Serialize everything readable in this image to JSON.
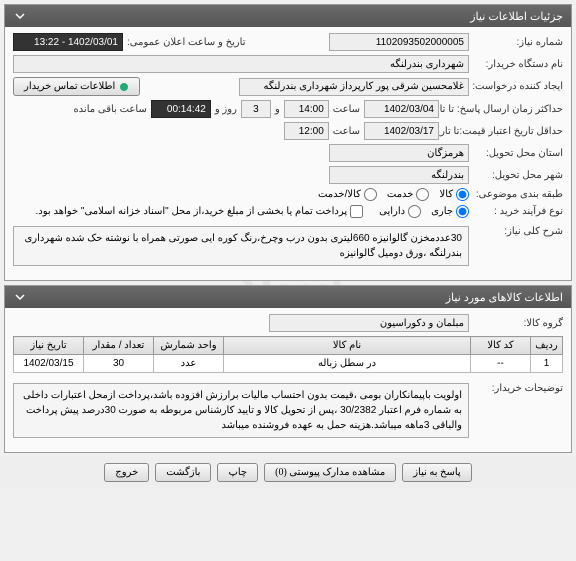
{
  "panels": {
    "info": {
      "title": "جزئیات اطلاعات نیاز",
      "need_number_label": "شماره نیاز:",
      "need_number": "1102093502000005",
      "announce_label": "تاریخ و ساعت اعلان عمومی:",
      "announce_date": "1402/03/01 - 13:22",
      "buyer_label": "نام دستگاه خریدار:",
      "buyer": "شهرداری بندرلنگه",
      "requester_label": "ایجاد کننده درخواست:",
      "requester": "غلامحسین شرقی پور کارپرداز شهرداری بندرلنگه",
      "contact_btn": "اطلاعات تماس خریدار",
      "deadline_send_label": "حداکثر زمان ارسال پاسخ: تا تاریخ:",
      "deadline_send_date": "1402/03/04",
      "time_label": "ساعت",
      "deadline_send_time": "14:00",
      "and_label": "و",
      "days": "3",
      "days_label": "روز و",
      "countdown": "00:14:42",
      "remain_label": "ساعت باقی مانده",
      "deadline_valid_label": "حداقل تاریخ اعتبار قیمت:تا تاریخ:",
      "deadline_valid_date": "1402/03/17",
      "deadline_valid_time": "12:00",
      "province_label": "استان محل تحویل:",
      "province": "هرمزگان",
      "city_label": "شهر محل تحویل:",
      "city": "بندرلنگه",
      "category_label": "طبقه بندی موضوعی:",
      "categories": {
        "goods": "کالا",
        "service": "خدمت",
        "goods_service": "کالا/خدمت"
      },
      "category_selected": "goods",
      "purchase_type_label": "نوع فرآیند خرید :",
      "purchase_types": {
        "current": "جاری",
        "asset": "دارایی"
      },
      "purchase_note": "پرداخت تمام یا بخشی از مبلغ خرید،از محل \"اسناد خزانه اسلامی\" خواهد بود.",
      "purchase_checked": false,
      "desc_label": "شرح کلی نیاز:",
      "desc": "30عددمخزن گالوانیزه 660لیتری بدون درب وچرخ،رنگ کوره ایی صورتی همراه با نوشته حک شده شهرداری بندرلنگه ،ورق دومیل گالوانیزه"
    },
    "goods": {
      "title": "اطلاعات کالاهای مورد نیاز",
      "group_label": "گروه کالا:",
      "group": "مبلمان و دکوراسیون",
      "table": {
        "cols": [
          "ردیف",
          "کد کالا",
          "نام کالا",
          "واحد شمارش",
          "تعداد / مقدار",
          "تاریخ نیاز"
        ],
        "rows": [
          [
            "1",
            "--",
            "در سطل زباله",
            "عدد",
            "30",
            "1402/03/15"
          ]
        ]
      },
      "buyer_notes_label": "توضیحات خریدار:",
      "buyer_notes": "اولویت باپیمانکاران بومی ،قیمت بدون احتساب مالیات برارزش افزوده باشد،پرداخت ازمحل اعتبارات داخلی به شماره فرم اعتبار 30/2382 ،پس از تحویل کالا و تایید کارشناس مربوطه به صورت 30درصد پیش پرداخت والباقی 3ماهه میباشد.هزینه حمل به عهده فروشنده میباشد"
    }
  },
  "footer": {
    "respond": "پاسخ به نیاز",
    "attachments": "مشاهده مدارک پیوستی (0)",
    "print": "چاپ",
    "back": "بازگشت",
    "exit": "خروج"
  },
  "colors": {
    "header_bg": "#5a5a5a",
    "accent": "#333333"
  }
}
